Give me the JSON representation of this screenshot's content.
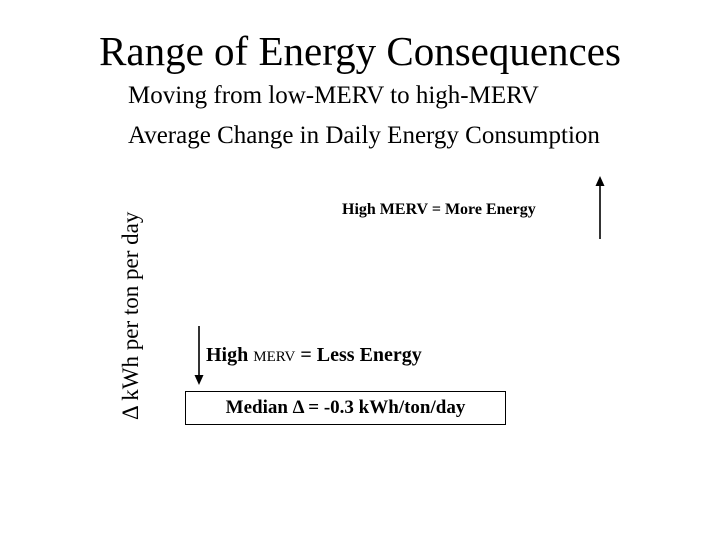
{
  "slide": {
    "title": "Range of Energy Consequences",
    "subtitle": "Moving from low-MERV to high-MERV",
    "chart_title": "Average Change in Daily Energy Consumption",
    "y_axis_label": "Δ kWh per ton per day",
    "more_energy_label": "High MERV = More Energy",
    "less_energy": {
      "prefix": "High ",
      "merv": "MERV",
      "suffix": " = Less Energy"
    },
    "median_label": "Median Δ = -0.3 kWh/ton/day",
    "up_arrow_icon": "up-arrow-icon",
    "down_arrow_icon": "down-arrow-icon"
  }
}
